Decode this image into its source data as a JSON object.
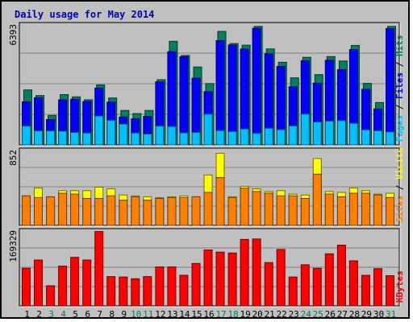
{
  "chart_data": {
    "type": "bar",
    "title": "Daily usage for May 2014",
    "categories": [
      "1",
      "2",
      "3",
      "4",
      "5",
      "6",
      "7",
      "8",
      "9",
      "10",
      "11",
      "12",
      "13",
      "14",
      "15",
      "16",
      "17",
      "18",
      "19",
      "20",
      "21",
      "22",
      "23",
      "24",
      "25",
      "26",
      "27",
      "28",
      "29",
      "30",
      "31"
    ],
    "weekend_days": [
      "3",
      "4",
      "10",
      "11",
      "17",
      "18",
      "24",
      "25",
      "31"
    ],
    "panels": [
      {
        "name": "hits_files_pages",
        "ymax_label": "6393",
        "ylim": [
          0,
          6393
        ],
        "side_labels": [
          {
            "text": "Hits",
            "color": "#00805c"
          },
          {
            "text": "Files",
            "color": "#0000ff"
          },
          {
            "text": "Pages",
            "color": "#00c0ff"
          }
        ],
        "series": [
          {
            "name": "Hits",
            "color": "#00805c",
            "values": [
              2950,
              2650,
              1580,
              2700,
              2580,
              2420,
              3220,
              2520,
              1850,
              1680,
              1850,
              3500,
              5560,
              4800,
              4180,
              3290,
              6090,
              5440,
              5350,
              6360,
              5150,
              4430,
              3600,
              4700,
              3770,
              4740,
              4500,
              5340,
              3300,
              2270,
              6360
            ]
          },
          {
            "name": "Files",
            "color": "#0000ff",
            "values": [
              2310,
              2530,
              1360,
              2420,
              2450,
              2330,
              3050,
              2300,
              1500,
              1400,
              1530,
              3390,
              5000,
              4730,
              3580,
              2860,
              5600,
              5360,
              5140,
              6260,
              4890,
              4210,
              3120,
              4520,
              3310,
              4540,
              4040,
              5120,
              2980,
              1930,
              6240
            ]
          },
          {
            "name": "Pages",
            "color": "#00c0ff",
            "values": [
              1010,
              750,
              750,
              740,
              670,
              640,
              1550,
              1320,
              1120,
              640,
              580,
              1010,
              990,
              650,
              670,
              1650,
              770,
              720,
              860,
              620,
              900,
              820,
              1020,
              1660,
              1230,
              1280,
              1310,
              1160,
              810,
              760,
              700
            ]
          }
        ]
      },
      {
        "name": "visits_sites",
        "ymax_label": "852",
        "ylim": [
          0,
          852
        ],
        "side_labels": [
          {
            "text": "Visits",
            "color": "#ffff00"
          },
          {
            "text": "Sites",
            "color": "#ff8000"
          }
        ],
        "series": [
          {
            "name": "Visits",
            "color": "#ffff00",
            "values": [
              340,
              430,
              300,
              400,
              400,
              400,
              440,
              420,
              350,
              340,
              330,
              320,
              330,
              340,
              330,
              580,
              830,
              330,
              450,
              420,
              390,
              400,
              360,
              350,
              770,
              390,
              380,
              430,
              400,
              360,
              370
            ]
          },
          {
            "name": "Sites",
            "color": "#ff8000",
            "values": [
              340,
              320,
              330,
              370,
              360,
              310,
              310,
              340,
              290,
              330,
              290,
              310,
              320,
              320,
              330,
              380,
              550,
              320,
              430,
              390,
              370,
              340,
              340,
              310,
              590,
              360,
              330,
              370,
              370,
              350,
              320
            ]
          }
        ]
      },
      {
        "name": "kbytes",
        "ymax_label": "169329",
        "ylim": [
          0,
          169329
        ],
        "side_labels": [
          {
            "text": "KBytes",
            "color": "#ff0000"
          }
        ],
        "series": [
          {
            "name": "KBytes",
            "color": "#ff0000",
            "values": [
              86000,
              105000,
              46000,
              91000,
              111000,
              105000,
              170000,
              67000,
              66000,
              62000,
              67000,
              89000,
              89000,
              70000,
              97000,
              128000,
              123000,
              121000,
              152000,
              153000,
              99000,
              129000,
              66000,
              94000,
              86000,
              119000,
              139000,
              103000,
              70000,
              85000,
              69000
            ]
          }
        ]
      }
    ]
  }
}
